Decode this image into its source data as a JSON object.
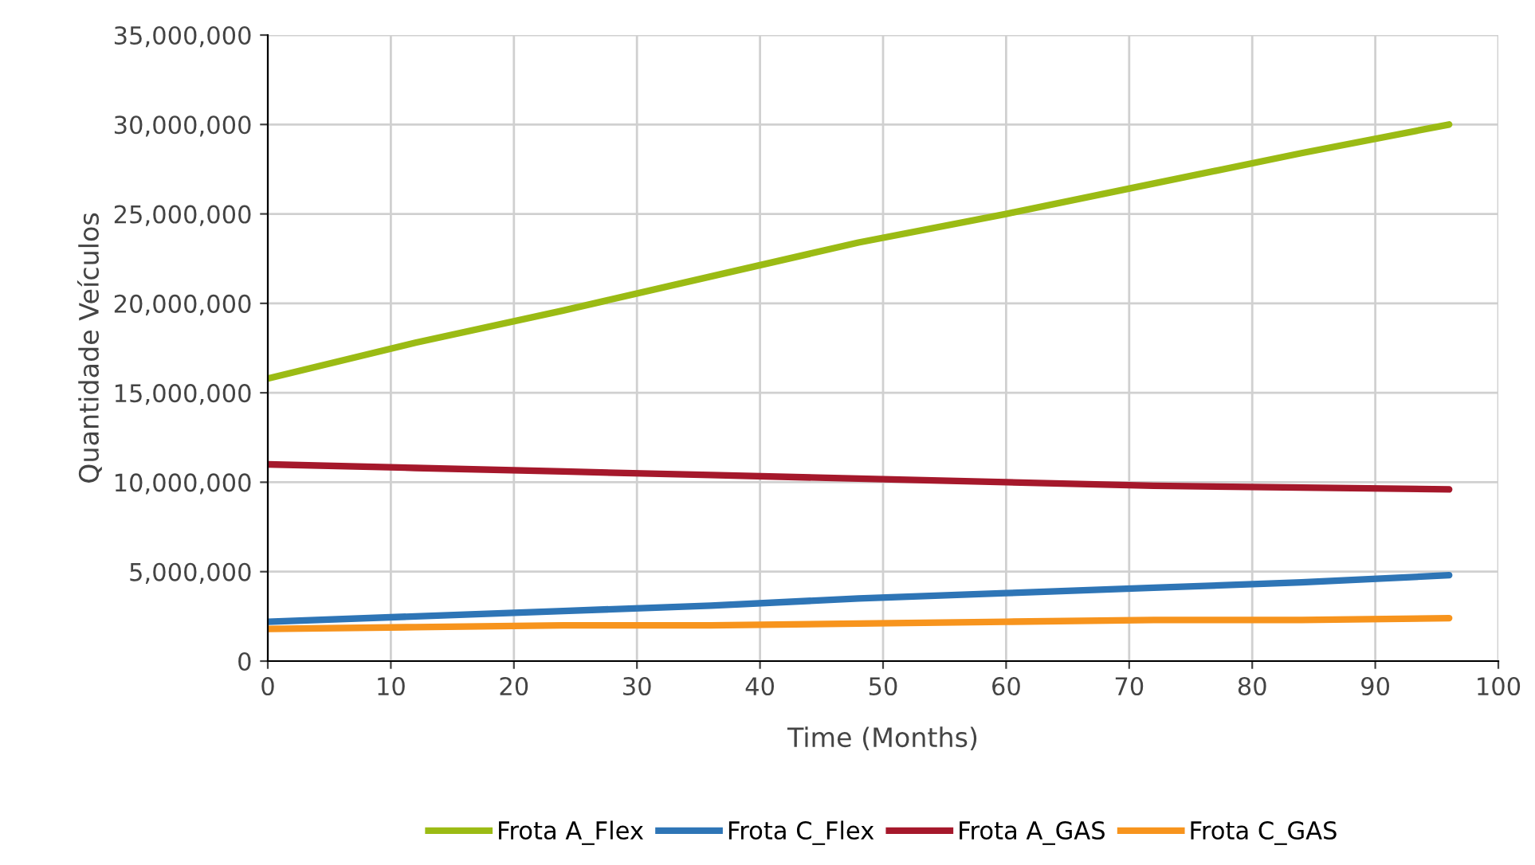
{
  "chart_data": {
    "type": "line",
    "xlabel": "Time (Months)",
    "ylabel": "Quantidade Veículos",
    "x": [
      0,
      12,
      24,
      36,
      48,
      60,
      72,
      84,
      96
    ],
    "series": [
      {
        "name": "Frota A_Flex",
        "color": "#9bbb14",
        "values": [
          15800000,
          17800000,
          19600000,
          21500000,
          23400000,
          25000000,
          26700000,
          28400000,
          30000000
        ]
      },
      {
        "name": "Frota C_Flex",
        "color": "#2e75b6",
        "values": [
          2200000,
          2500000,
          2800000,
          3100000,
          3500000,
          3800000,
          4100000,
          4400000,
          4800000
        ]
      },
      {
        "name": "Frota A_GAS",
        "color": "#a5182b",
        "values": [
          11000000,
          10800000,
          10600000,
          10400000,
          10200000,
          10000000,
          9800000,
          9700000,
          9600000
        ]
      },
      {
        "name": "Frota C_GAS",
        "color": "#f7941d",
        "values": [
          1800000,
          1900000,
          2000000,
          2000000,
          2100000,
          2200000,
          2300000,
          2300000,
          2400000
        ]
      }
    ],
    "xlim": [
      0,
      100
    ],
    "xticks": [
      0,
      10,
      20,
      30,
      40,
      50,
      60,
      70,
      80,
      90,
      100
    ],
    "ylim": [
      0,
      35000000
    ],
    "yticks": [
      {
        "value": 0,
        "label": "0"
      },
      {
        "value": 5000000,
        "label": "5,000,000"
      },
      {
        "value": 10000000,
        "label": "10,000,000"
      },
      {
        "value": 15000000,
        "label": "15,000,000"
      },
      {
        "value": 20000000,
        "label": "20,000,000"
      },
      {
        "value": 25000000,
        "label": "25,000,000"
      },
      {
        "value": 30000000,
        "label": "30,000,000"
      },
      {
        "value": 35000000,
        "label": "35,000,000"
      }
    ],
    "grid": true,
    "legend": "bottom",
    "marker": "none",
    "line_style": "solid"
  }
}
